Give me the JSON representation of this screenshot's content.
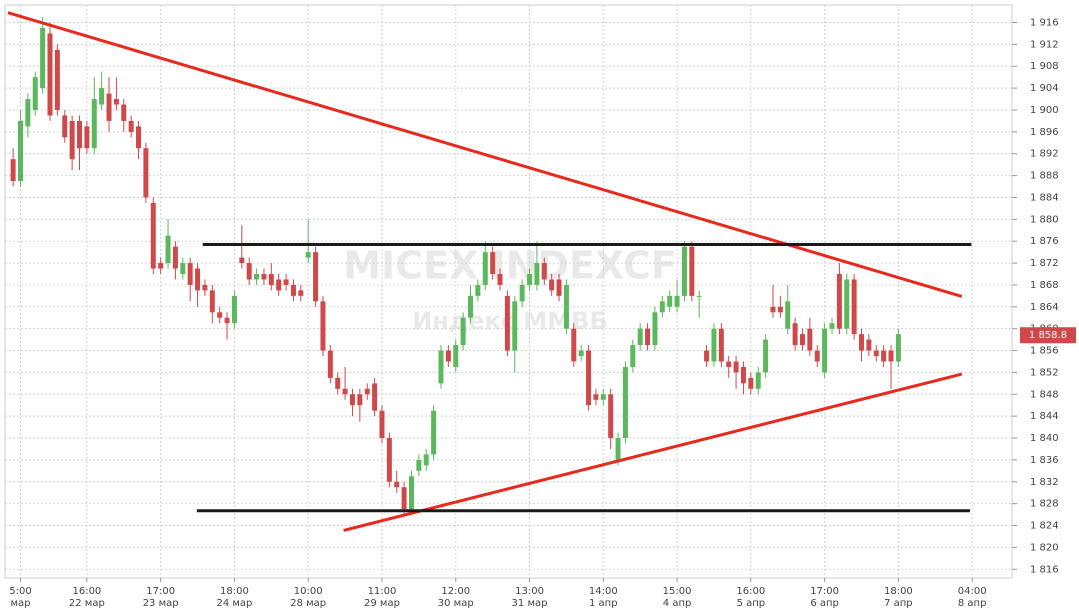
{
  "chart_data": {
    "type": "candlestick",
    "watermark": [
      "MICEX INDEXCF",
      "Индекс ММВБ"
    ],
    "last_price": {
      "value": 1858.8,
      "label": "1 858.8"
    },
    "up_color": "#5cb85c",
    "down_color": "#d0494a",
    "x": [
      0,
      1,
      2,
      3,
      4,
      5,
      6,
      7,
      8,
      9,
      10,
      11,
      12,
      13,
      14,
      15,
      16,
      17,
      18,
      19,
      20,
      21,
      22,
      23,
      24,
      25,
      26,
      27,
      28,
      29,
      30,
      31,
      32,
      33,
      34,
      35,
      36,
      37,
      38,
      39,
      40,
      41,
      42,
      43,
      44,
      45,
      46,
      47,
      48,
      49,
      50,
      51,
      52,
      53,
      54,
      55,
      56,
      57,
      58,
      59,
      60,
      61,
      62,
      63,
      64,
      65,
      66,
      67,
      68,
      69,
      70,
      71,
      72,
      73,
      74,
      75,
      76,
      77,
      78,
      79,
      80,
      81,
      82,
      83,
      84,
      85,
      86,
      87,
      88,
      89,
      90,
      91,
      92,
      93,
      94,
      95,
      96,
      97,
      98,
      99,
      100,
      101,
      102,
      103,
      104,
      105,
      106,
      107,
      108,
      109,
      110,
      111,
      112,
      113,
      114,
      115,
      116,
      117,
      118,
      119,
      120
    ],
    "open": [
      1891,
      1887,
      1897,
      1900,
      1904,
      1914,
      1911,
      1899,
      1898,
      1898,
      1897,
      1893,
      1901,
      1903,
      1902,
      1901,
      1898,
      1897,
      1893,
      1883,
      1872,
      1872,
      1875,
      1870,
      1872,
      1871,
      1868,
      1867,
      1863,
      1862,
      1861,
      1873,
      1872,
      1869,
      1870,
      1870,
      1869,
      1869,
      1868,
      1867,
      1873,
      1874,
      1865,
      1856,
      1851,
      1849,
      1848,
      1848,
      1849,
      1850,
      1845,
      1840,
      1832,
      1831,
      1827,
      1834,
      1835,
      1837,
      1850,
      1856,
      1853,
      1857,
      1862,
      1866,
      1868,
      1874,
      1870,
      1866,
      1856,
      1865,
      1868,
      1868,
      1872,
      1869,
      1869,
      1860,
      1860,
      1855,
      1856,
      1848,
      1847,
      1848,
      1836,
      1840,
      1853,
      1857,
      1860,
      1857,
      1863,
      1864,
      1864,
      1866,
      1875,
      1866,
      1856,
      1854,
      1860,
      1854,
      1854,
      1853,
      1851,
      1849,
      1852,
      1864,
      1864,
      1860,
      1861,
      1859,
      1860,
      1856,
      1852,
      1860,
      1870,
      1860,
      1869,
      1859,
      1858,
      1856,
      1856,
      1856,
      1854
    ],
    "high": [
      1893,
      1900,
      1903,
      1907,
      1917,
      1916,
      1912,
      1900,
      1899,
      1899,
      1898,
      1906,
      1907,
      1906,
      1906,
      1902,
      1899,
      1898,
      1894,
      1884,
      1873,
      1880,
      1876,
      1873,
      1873,
      1872,
      1869,
      1868,
      1864,
      1863,
      1867,
      1879,
      1873,
      1871,
      1871,
      1872,
      1870,
      1870,
      1869,
      1868,
      1880,
      1875,
      1866,
      1857,
      1852,
      1853,
      1849,
      1849,
      1850,
      1851,
      1846,
      1841,
      1834,
      1832,
      1834,
      1837,
      1838,
      1846,
      1857,
      1857,
      1858,
      1863,
      1868,
      1869,
      1876,
      1875,
      1871,
      1867,
      1866,
      1869,
      1871,
      1876,
      1873,
      1870,
      1870,
      1869,
      1861,
      1857,
      1857,
      1849,
      1849,
      1849,
      1841,
      1854,
      1858,
      1861,
      1861,
      1864,
      1866,
      1867,
      1869,
      1876,
      1876,
      1867,
      1857,
      1861,
      1861,
      1855,
      1855,
      1854,
      1852,
      1853,
      1859,
      1868,
      1866,
      1868,
      1862,
      1860,
      1862,
      1857,
      1861,
      1862,
      1872,
      1870,
      1870,
      1860,
      1859,
      1857,
      1857,
      1857,
      1860
    ],
    "low": [
      1886,
      1886,
      1895,
      1899,
      1903,
      1898,
      1899,
      1894,
      1889,
      1889,
      1892,
      1892,
      1900,
      1896,
      1900,
      1896,
      1895,
      1891,
      1883,
      1870,
      1870,
      1871,
      1869,
      1869,
      1865,
      1864,
      1866,
      1861,
      1861,
      1858,
      1860,
      1871,
      1868,
      1868,
      1868,
      1867,
      1866,
      1867,
      1865,
      1865,
      1872,
      1864,
      1855,
      1850,
      1848,
      1847,
      1844,
      1843,
      1847,
      1844,
      1839,
      1831,
      1830,
      1826,
      1826,
      1833,
      1834,
      1836,
      1849,
      1853,
      1852,
      1856,
      1861,
      1865,
      1867,
      1869,
      1867,
      1855,
      1852,
      1864,
      1867,
      1867,
      1868,
      1866,
      1865,
      1859,
      1853,
      1854,
      1845,
      1846,
      1846,
      1838,
      1835,
      1839,
      1852,
      1856,
      1856,
      1856,
      1862,
      1863,
      1863,
      1865,
      1865,
      1862,
      1853,
      1853,
      1853,
      1851,
      1849,
      1848,
      1848,
      1848,
      1851,
      1862,
      1862,
      1859,
      1856,
      1856,
      1855,
      1853,
      1851,
      1859,
      1859,
      1859,
      1858,
      1854,
      1855,
      1854,
      1853,
      1849,
      1853
    ],
    "close": [
      1887,
      1898,
      1902,
      1906,
      1915,
      1899,
      1900,
      1895,
      1891,
      1893,
      1893,
      1902,
      1904,
      1898,
      1901,
      1898,
      1896,
      1893,
      1884,
      1871,
      1871,
      1877,
      1871,
      1872,
      1868,
      1867,
      1867,
      1863,
      1862,
      1861,
      1866,
      1872,
      1869,
      1870,
      1869,
      1868,
      1867,
      1868,
      1866,
      1866,
      1874,
      1865,
      1856,
      1851,
      1849,
      1848,
      1846,
      1846,
      1848,
      1845,
      1840,
      1832,
      1831,
      1827,
      1833,
      1836,
      1837,
      1845,
      1856,
      1854,
      1857,
      1862,
      1866,
      1868,
      1874,
      1870,
      1868,
      1856,
      1865,
      1868,
      1870,
      1872,
      1869,
      1867,
      1866,
      1868,
      1854,
      1856,
      1846,
      1847,
      1848,
      1840,
      1840,
      1853,
      1857,
      1860,
      1857,
      1863,
      1865,
      1866,
      1866,
      1875,
      1866,
      1866,
      1854,
      1860,
      1854,
      1853,
      1852,
      1850,
      1849,
      1852,
      1858,
      1863,
      1863,
      1865,
      1857,
      1857,
      1856,
      1854,
      1860,
      1861,
      1860,
      1869,
      1859,
      1856,
      1856,
      1855,
      1854,
      1854,
      1859
    ],
    "trendlines": [
      {
        "x": [
          -0.7,
          128.6
        ],
        "y": [
          1917.8,
          1865.9
        ],
        "color": "#e8291c"
      },
      {
        "x": [
          44.8,
          128.6
        ],
        "y": [
          1823.1,
          1851.7
        ],
        "color": "#e8291c"
      },
      {
        "x": [
          25.7,
          129.9
        ],
        "y": [
          1875.4,
          1875.4
        ],
        "color": "#1a1a1a"
      },
      {
        "x": [
          24.9,
          129.7
        ],
        "y": [
          1826.7,
          1826.7
        ],
        "color": "#1a1a1a"
      }
    ],
    "xlim": [
      -1.1,
      135.4
    ],
    "xticks": [
      {
        "value": 1,
        "label": "5:00"
      },
      {
        "value": 10,
        "label": "16:00"
      },
      {
        "value": 20,
        "label": "17:00"
      },
      {
        "value": 30,
        "label": "18:00"
      },
      {
        "value": 40,
        "label": "10:00"
      },
      {
        "value": 50,
        "label": "11:00"
      },
      {
        "value": 60,
        "label": "12:00"
      },
      {
        "value": 70,
        "label": "13:00"
      },
      {
        "value": 80,
        "label": "14:00"
      },
      {
        "value": 90,
        "label": "15:00"
      },
      {
        "value": 100,
        "label": "16:00"
      },
      {
        "value": 110,
        "label": "17:00"
      },
      {
        "value": 120,
        "label": "18:00"
      },
      {
        "value": 130,
        "label": "04:00"
      }
    ],
    "xtick_dates": [
      "мар",
      "22 мар",
      "23 мар",
      "24 мар",
      "28 мар",
      "29 мар",
      "30 мар",
      "31 мар",
      "1 апр",
      "4 апр",
      "5 апр",
      "6 апр",
      "7 апр",
      "8 апр"
    ],
    "ylim": [
      1814.4,
      1919.2
    ],
    "yticks": [
      {
        "value": 1816,
        "label": "1 816"
      },
      {
        "value": 1820,
        "label": "1 820"
      },
      {
        "value": 1824,
        "label": "1 824"
      },
      {
        "value": 1828,
        "label": "1 828"
      },
      {
        "value": 1832,
        "label": "1 832"
      },
      {
        "value": 1836,
        "label": "1 836"
      },
      {
        "value": 1840,
        "label": "1 840"
      },
      {
        "value": 1844,
        "label": "1 844"
      },
      {
        "value": 1848,
        "label": "1 848"
      },
      {
        "value": 1852,
        "label": "1 852"
      },
      {
        "value": 1856,
        "label": "1 856"
      },
      {
        "value": 1860,
        "label": "1 860"
      },
      {
        "value": 1864,
        "label": "1 864"
      },
      {
        "value": 1868,
        "label": "1 868"
      },
      {
        "value": 1872,
        "label": "1 872"
      },
      {
        "value": 1876,
        "label": "1 876"
      },
      {
        "value": 1880,
        "label": "1 880"
      },
      {
        "value": 1884,
        "label": "1 884"
      },
      {
        "value": 1888,
        "label": "1 888"
      },
      {
        "value": 1892,
        "label": "1 892"
      },
      {
        "value": 1896,
        "label": "1 896"
      },
      {
        "value": 1900,
        "label": "1 900"
      },
      {
        "value": 1904,
        "label": "1 904"
      },
      {
        "value": 1908,
        "label": "1 908"
      },
      {
        "value": 1912,
        "label": "1 912"
      },
      {
        "value": 1916,
        "label": "1 916"
      }
    ],
    "grid": true
  }
}
